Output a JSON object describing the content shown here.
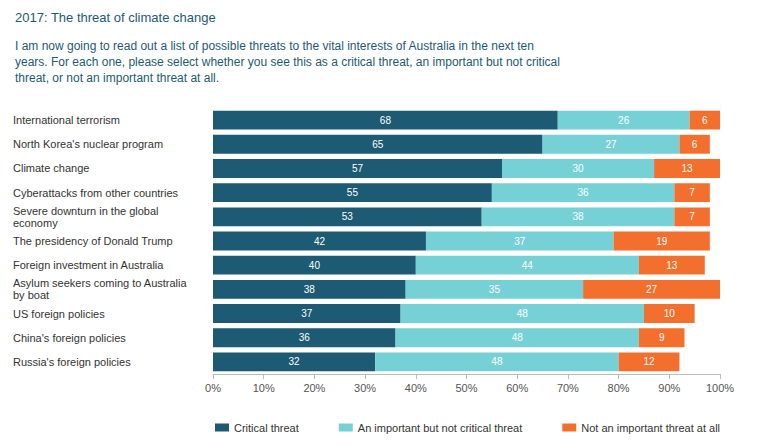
{
  "chart_data": {
    "type": "bar",
    "orientation": "horizontal",
    "stacked": true,
    "data_labels": true,
    "grid": false,
    "legend": "bottom",
    "title": "2017: The threat of climate change",
    "subtitle": "I am now going to read out a list of possible threats to the vital interests of Australia in the next ten years. For each one, please select whether you see this as a critical threat, an important but not critical threat, or not an important threat at all.",
    "categories": [
      "International terrorism",
      "North Korea's nuclear program",
      "Climate change",
      "Cyberattacks from other countries",
      "Severe downturn in the global economy",
      "The presidency of Donald Trump",
      "Foreign investment in Australia",
      "Asylum seekers coming to Australia by boat",
      "US foreign policies",
      "China's foreign policies",
      "Russia's foreign policies"
    ],
    "series": [
      {
        "name": "Critical threat",
        "color": "#1d5a73",
        "values": [
          68,
          65,
          57,
          55,
          53,
          42,
          40,
          38,
          37,
          36,
          32
        ]
      },
      {
        "name": "An important but not critical threat",
        "color": "#76d1d6",
        "values": [
          26,
          27,
          30,
          36,
          38,
          37,
          44,
          35,
          48,
          48,
          48
        ]
      },
      {
        "name": "Not an important threat at all",
        "color": "#f26f2d",
        "values": [
          6,
          6,
          13,
          7,
          7,
          19,
          13,
          27,
          10,
          9,
          12
        ]
      }
    ],
    "xlim": [
      0,
      100
    ],
    "xticks": [
      {
        "value": 0,
        "label": "0%"
      },
      {
        "value": 10,
        "label": "10%"
      },
      {
        "value": 20,
        "label": "20%"
      },
      {
        "value": 30,
        "label": "30%"
      },
      {
        "value": 40,
        "label": "40%"
      },
      {
        "value": 50,
        "label": "50%"
      },
      {
        "value": 60,
        "label": "60%"
      },
      {
        "value": 70,
        "label": "70%"
      },
      {
        "value": 80,
        "label": "80%"
      },
      {
        "value": 90,
        "label": "90%"
      },
      {
        "value": 100,
        "label": "100%"
      }
    ]
  }
}
